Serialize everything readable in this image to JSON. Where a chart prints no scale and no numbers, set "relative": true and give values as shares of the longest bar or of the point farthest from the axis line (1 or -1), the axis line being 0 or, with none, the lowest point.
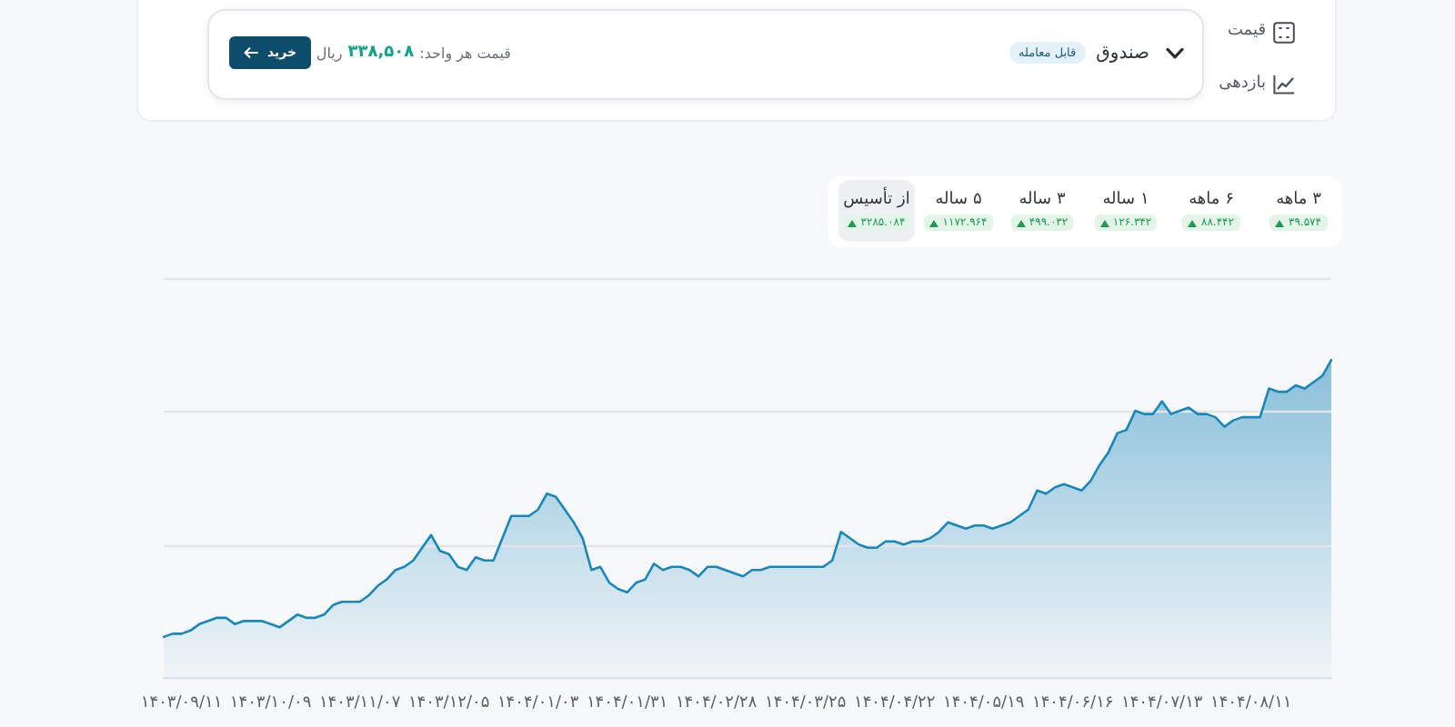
{
  "chart_data": {
    "type": "area",
    "relative": true,
    "color": "#1a87b9",
    "ref_lines": [
      {
        "axis": "y",
        "value": 0.419,
        "color": "#e1e4e8"
      },
      {
        "axis": "y",
        "value": 0.838,
        "color": "#e1e4e8"
      },
      {
        "axis": "y",
        "value": 1.257,
        "color": "#e1e4e8"
      }
    ],
    "categories": [
      null,
      null,
      "۱۴۰۳/۰۹/۱۱",
      null,
      null,
      null,
      null,
      null,
      null,
      null,
      null,
      null,
      "۱۴۰۳/۱۰/۰۹",
      null,
      null,
      null,
      null,
      null,
      null,
      null,
      null,
      null,
      "۱۴۰۳/۱۱/۰۷",
      null,
      null,
      null,
      null,
      null,
      null,
      null,
      null,
      null,
      "۱۴۰۳/۱۲/۰۵",
      null,
      null,
      null,
      null,
      null,
      null,
      null,
      null,
      null,
      "۱۴۰۴/۰۱/۰۳",
      null,
      null,
      null,
      null,
      null,
      null,
      null,
      null,
      null,
      "۱۴۰۴/۰۱/۳۱",
      null,
      null,
      null,
      null,
      null,
      null,
      null,
      null,
      null,
      "۱۴۰۴/۰۲/۲۸",
      null,
      null,
      null,
      null,
      null,
      null,
      null,
      null,
      null,
      "۱۴۰۴/۰۳/۲۵",
      null,
      null,
      null,
      null,
      null,
      null,
      null,
      null,
      null,
      "۱۴۰۴/۰۴/۲۲",
      null,
      null,
      null,
      null,
      null,
      null,
      null,
      null,
      null,
      "۱۴۰۴/۰۵/۱۹",
      null,
      null,
      null,
      null,
      null,
      null,
      null,
      null,
      null,
      "۱۴۰۴/۰۶/۱۶",
      null,
      null,
      null,
      null,
      null,
      null,
      null,
      null,
      null,
      "۱۴۰۴/۰۷/۱۳",
      null,
      null,
      null,
      null,
      null,
      null,
      null,
      null,
      null,
      "۱۴۰۴/۰۸/۱۱",
      null,
      null,
      null,
      null,
      null,
      null,
      null,
      null,
      null
    ],
    "values": [
      0.13,
      0.14,
      0.14,
      0.15,
      0.17,
      0.18,
      0.19,
      0.19,
      0.17,
      0.18,
      0.18,
      0.18,
      0.17,
      0.16,
      0.18,
      0.2,
      0.19,
      0.19,
      0.2,
      0.23,
      0.24,
      0.24,
      0.24,
      0.26,
      0.29,
      0.31,
      0.34,
      0.35,
      0.37,
      0.41,
      0.45,
      0.4,
      0.39,
      0.35,
      0.34,
      0.38,
      0.37,
      0.37,
      0.44,
      0.51,
      0.51,
      0.51,
      0.53,
      0.58,
      0.57,
      0.53,
      0.49,
      0.44,
      0.34,
      0.35,
      0.3,
      0.28,
      0.27,
      0.3,
      0.31,
      0.36,
      0.34,
      0.35,
      0.35,
      0.34,
      0.32,
      0.35,
      0.35,
      0.34,
      0.33,
      0.32,
      0.34,
      0.34,
      0.35,
      0.35,
      0.35,
      0.35,
      0.35,
      0.35,
      0.35,
      0.37,
      0.46,
      0.44,
      0.42,
      0.41,
      0.41,
      0.43,
      0.43,
      0.42,
      0.43,
      0.43,
      0.44,
      0.46,
      0.49,
      0.48,
      0.47,
      0.48,
      0.48,
      0.47,
      0.48,
      0.49,
      0.51,
      0.53,
      0.59,
      0.58,
      0.6,
      0.61,
      0.6,
      0.59,
      0.62,
      0.67,
      0.71,
      0.77,
      0.78,
      0.84,
      0.83,
      0.83,
      0.87,
      0.83,
      0.84,
      0.85,
      0.83,
      0.83,
      0.82,
      0.79,
      0.81,
      0.82,
      0.82,
      0.82,
      0.91,
      0.9,
      0.9,
      0.92,
      0.91,
      0.93,
      0.95,
      1.0
    ],
    "annotations": [
      "صندوق",
      "قابل معامله",
      "قیمت هر واحد:",
      "۳۳۸,۵۰۸",
      "ریال",
      "خرید",
      "قیمت",
      "بازدهی",
      "۳ ماهه",
      "۳۹.۵۷۴",
      "۶ ماهه",
      "۸۸.۴۴۲",
      "۱ ساله",
      "۱۲۶.۳۴۲",
      "۳ ساله",
      "۴۹۹.۰۳۲",
      "۵ ساله",
      "۱۱۷۲.۹۶۴",
      "از تأسیس",
      "۳۲۸۵.۰۸۴"
    ]
  }
}
